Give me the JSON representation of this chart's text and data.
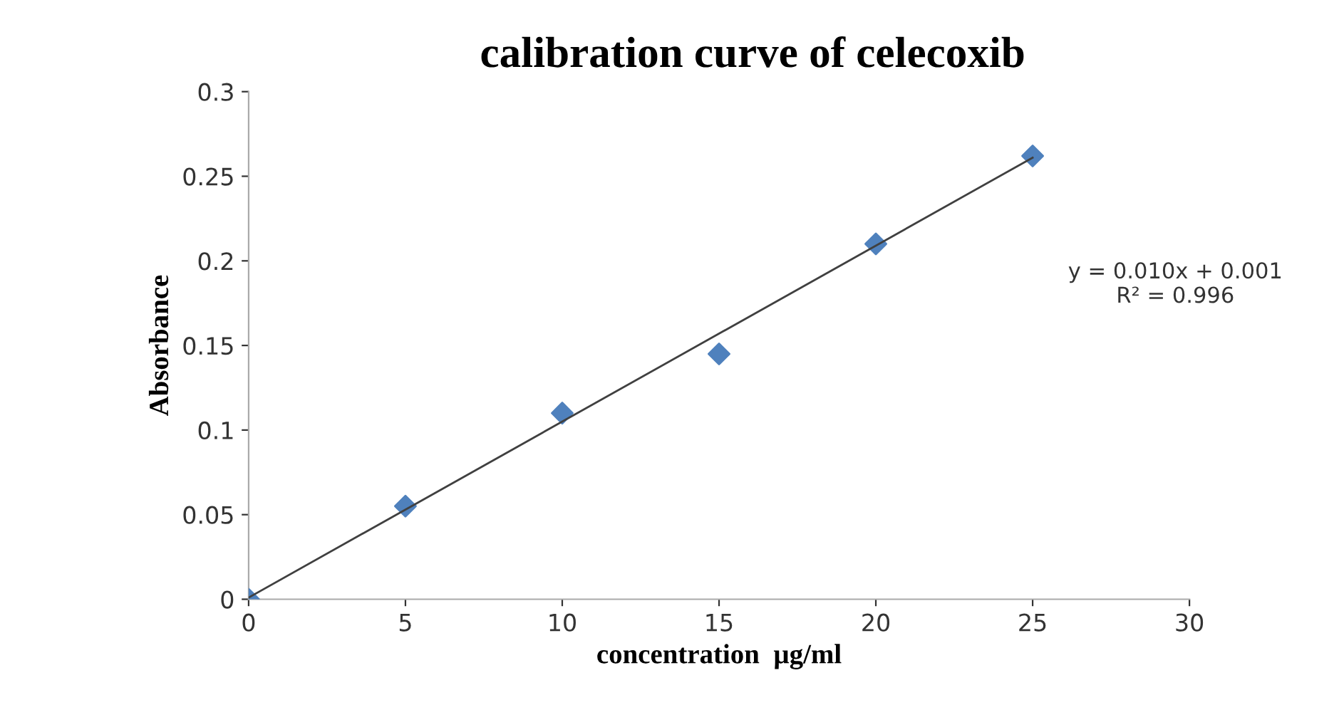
{
  "chart_data": {
    "type": "scatter",
    "title": "calibration curve of celecoxib",
    "xlabel": "concentration  µg/ml",
    "ylabel": "Absorbance",
    "x": [
      0,
      5,
      10,
      15,
      20,
      25
    ],
    "series": [
      {
        "color": "#4f81bd",
        "marker": "diamond",
        "values": [
          0,
          0.055,
          0.11,
          0.145,
          0.21,
          0.262
        ]
      },
      {
        "type": "line",
        "color": "#404040",
        "marker": "none",
        "x": [
          0,
          25
        ],
        "values": [
          0.001,
          0.261
        ]
      }
    ],
    "annotations": [
      "y = 0.010x + 0.001\nR² = 0.996"
    ],
    "xlim": [
      0,
      30
    ],
    "xticks": [
      0,
      5,
      10,
      15,
      20,
      25,
      30
    ],
    "ylim": [
      0,
      0.3
    ],
    "yticks": [
      0,
      0.05,
      0.1,
      0.15,
      0.2,
      0.25,
      0.3
    ],
    "grid": false,
    "legend": false
  }
}
